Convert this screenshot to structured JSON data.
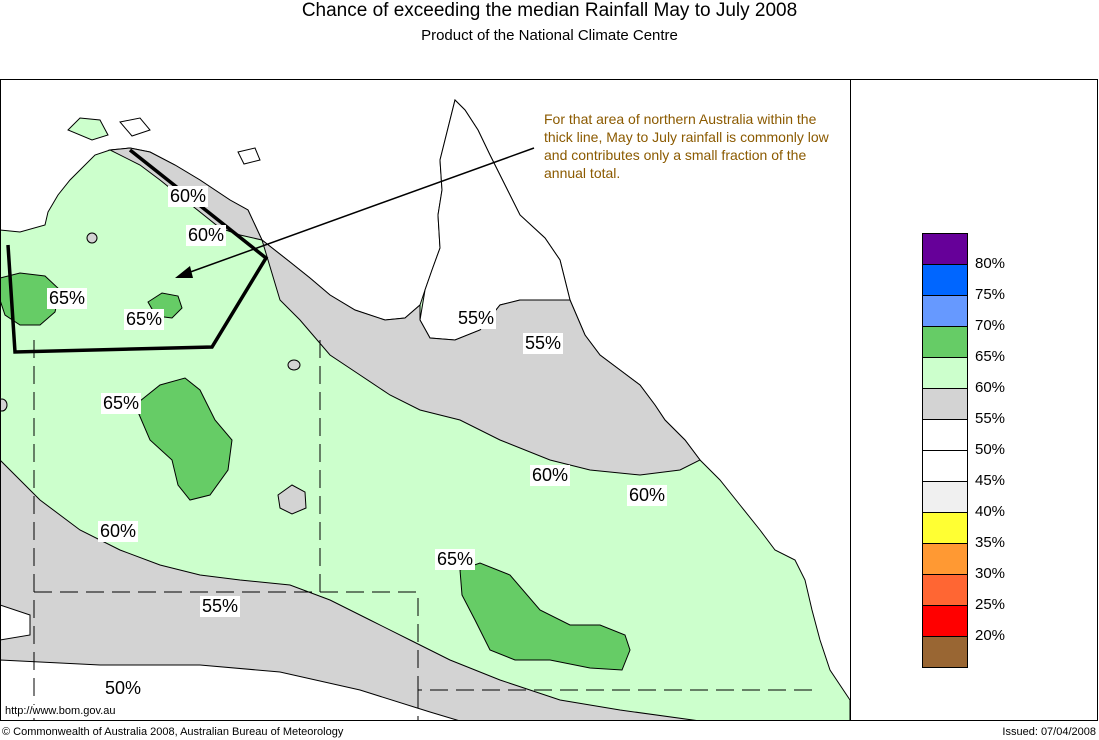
{
  "title": "Chance of exceeding the median Rainfall May to July 2008",
  "subtitle": "Product of the National Climate Centre",
  "note": "For that area of northern Australia within the thick line, May to July rainfall is commonly low and contributes only a small fraction of the annual total.",
  "map_labels": {
    "l60a": "60%",
    "l60b": "60%",
    "l65a": "65%",
    "l65b": "65%",
    "l55a": "55%",
    "l55b": "55%",
    "l65c": "65%",
    "l60c": "60%",
    "l60d": "60%",
    "l60e": "60%",
    "l65d": "65%",
    "l55c": "55%",
    "l50a": "50%"
  },
  "legend": [
    {
      "label": "80%",
      "color": "#660099"
    },
    {
      "label": "75%",
      "color": "#0066ff"
    },
    {
      "label": "70%",
      "color": "#6699ff"
    },
    {
      "label": "65%",
      "color": "#66cc66"
    },
    {
      "label": "60%",
      "color": "#ccffcc"
    },
    {
      "label": "55%",
      "color": "#d3d3d3"
    },
    {
      "label": "50%",
      "color": "#ffffff"
    },
    {
      "label": "45%",
      "color": "#ffffff"
    },
    {
      "label": "40%",
      "color": "#f0f0f0"
    },
    {
      "label": "35%",
      "color": "#ffff33"
    },
    {
      "label": "30%",
      "color": "#ff9933"
    },
    {
      "label": "25%",
      "color": "#ff6633"
    },
    {
      "label": "20%",
      "color": "#ff0000"
    },
    {
      "label": "",
      "color": "#996633"
    }
  ],
  "source_url": "http://www.bom.gov.au",
  "copyright": "© Commonwealth of Australia 2008, Australian Bureau of Meteorology",
  "issued": "Issued: 07/04/2008"
}
